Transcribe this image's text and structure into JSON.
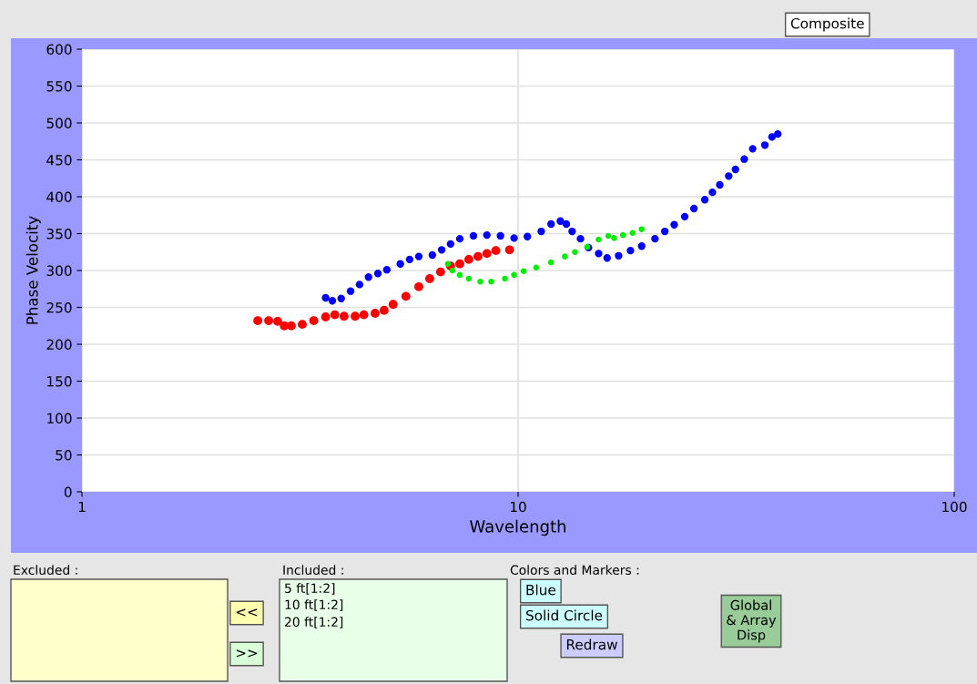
{
  "chart_data": {
    "type": "scatter",
    "xlabel": "Wavelength",
    "ylabel": "Phase Velocity",
    "log": "x",
    "xlim": [
      1,
      100
    ],
    "xticks": [
      1,
      10,
      100
    ],
    "ylim": [
      0,
      600
    ],
    "yticks": [
      0,
      50,
      100,
      150,
      200,
      250,
      300,
      350,
      400,
      450,
      500,
      550,
      600
    ],
    "grid": true,
    "marker": "circle",
    "series": [
      {
        "color": "#ff0000",
        "x": [
          2.53,
          2.68,
          2.81,
          2.91,
          3.02,
          3.2,
          3.4,
          3.62,
          3.8,
          3.99,
          4.23,
          4.43,
          4.7,
          4.93,
          5.17,
          5.53,
          5.92,
          6.27,
          6.64,
          7.0,
          7.35,
          7.71,
          8.09,
          8.48,
          8.89,
          9.56
        ],
        "values": [
          232,
          232,
          231,
          225,
          225,
          227,
          232,
          237,
          240,
          238,
          238,
          240,
          242,
          246,
          254,
          265,
          278,
          289,
          298,
          306,
          309,
          315,
          319,
          323,
          327,
          328
        ]
      },
      {
        "color": "#0000ff",
        "x": [
          3.62,
          3.75,
          3.93,
          4.13,
          4.33,
          4.54,
          4.77,
          5.0,
          5.37,
          5.64,
          5.92,
          6.36,
          6.68,
          7.0,
          7.35,
          7.9,
          8.48,
          9.11,
          9.79,
          10.5,
          11.3,
          11.9,
          12.5,
          12.9,
          13.3,
          13.9,
          14.5,
          15.3,
          16.0,
          17.0,
          18.1,
          19.2,
          20.6,
          21.7,
          22.8,
          24.1,
          25.3,
          26.8,
          27.9,
          29.0,
          30.4,
          31.5,
          33.0,
          34.5,
          36.8,
          38.2,
          39.4
        ],
        "values": [
          263,
          259,
          262,
          272,
          281,
          291,
          296,
          301,
          309,
          315,
          319,
          321,
          328,
          336,
          343,
          347,
          348,
          347,
          344,
          346,
          353,
          363,
          367,
          363,
          353,
          343,
          331,
          323,
          317,
          320,
          327,
          333,
          343,
          353,
          362,
          373,
          384,
          396,
          406,
          416,
          428,
          437,
          451,
          465,
          470,
          481,
          485
        ]
      },
      {
        "color": "#00ee00",
        "x": [
          6.9,
          7.07,
          7.35,
          7.71,
          8.19,
          8.68,
          9.33,
          9.79,
          10.3,
          11.0,
          11.9,
          12.8,
          13.5,
          14.4,
          15.3,
          16.1,
          16.6,
          17.4,
          18.3,
          19.2
        ],
        "values": [
          309,
          300,
          294,
          289,
          285,
          285,
          289,
          294,
          299,
          304,
          311,
          319,
          325,
          332,
          342,
          347,
          344,
          348,
          351,
          356
        ]
      }
    ],
    "annotations": [
      "Composite",
      "Excluded :",
      "Included :",
      "5 ft[1:2]",
      "10 ft[1:2]",
      "20 ft[1:2]",
      "Colors and Markers :",
      "Blue",
      "Solid Circle",
      "<<",
      ">>",
      "Redraw",
      "Global\n& Array\nDisp"
    ]
  }
}
